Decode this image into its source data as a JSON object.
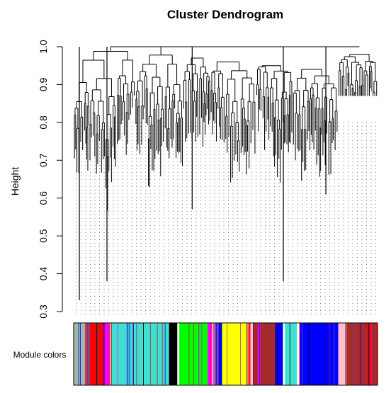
{
  "chart_data": {
    "type": "dendrogram",
    "title": "Cluster Dendrogram",
    "xlabel": "",
    "ylabel": "Height",
    "ylim": [
      0.3,
      1.0
    ],
    "yticks": [
      "0.3",
      "0.4",
      "0.5",
      "0.6",
      "0.7",
      "0.8",
      "0.9",
      "1.0"
    ],
    "ytick_values": [
      0.3,
      0.4,
      0.5,
      0.6,
      0.7,
      0.8,
      0.9,
      1.0
    ],
    "clusters": [
      {
        "color": "#000000",
        "merge_height": 1.0,
        "min_leaf_height": 0.33
      },
      {
        "color": "#000000",
        "merge_height": 0.97,
        "min_leaf_height": 0.66
      },
      {
        "color": "#000000",
        "merge_height": 0.96,
        "min_leaf_height": 0.57
      },
      {
        "color": "#000000",
        "merge_height": 0.95,
        "min_leaf_height": 0.38
      },
      {
        "color": "#000000",
        "merge_height": 0.94,
        "min_leaf_height": 0.61
      },
      {
        "color": "#000000",
        "merge_height": 0.98,
        "min_leaf_height": 0.87
      }
    ],
    "color_bar": {
      "label": "Module colors",
      "segments": [
        {
          "color": "#9fb8a8",
          "fraction": 0.035
        },
        {
          "color": "#7a4ba0",
          "fraction": 0.012
        },
        {
          "color": "#ff0000",
          "fraction": 0.018
        },
        {
          "color": "#a52a2a",
          "fraction": 0.008
        },
        {
          "color": "#ff0000",
          "fraction": 0.012
        },
        {
          "color": "#800080",
          "fraction": 0.006
        },
        {
          "color": "#ff00ff",
          "fraction": 0.014
        },
        {
          "color": "#bbbbbb",
          "fraction": 0.006
        },
        {
          "color": "#40e0d0",
          "fraction": 0.168
        },
        {
          "color": "#000000",
          "fraction": 0.024
        },
        {
          "color": "#ffffff",
          "fraction": 0.006
        },
        {
          "color": "#00ff00",
          "fraction": 0.083
        },
        {
          "color": "#ff00ff",
          "fraction": 0.012
        },
        {
          "color": "#ffc0cb",
          "fraction": 0.008
        },
        {
          "color": "#7a4ba0",
          "fraction": 0.012
        },
        {
          "color": "#0000ff",
          "fraction": 0.01
        },
        {
          "color": "#ffff00",
          "fraction": 0.077
        },
        {
          "color": "#ff0000",
          "fraction": 0.006
        },
        {
          "color": "#ffc0cb",
          "fraction": 0.01
        },
        {
          "color": "#a52a2a",
          "fraction": 0.012
        },
        {
          "color": "#ff00ff",
          "fraction": 0.006
        },
        {
          "color": "#a52a2a",
          "fraction": 0.045
        },
        {
          "color": "#0000ff",
          "fraction": 0.022
        },
        {
          "color": "#ffffff",
          "fraction": 0.006
        },
        {
          "color": "#40e0d0",
          "fraction": 0.035
        },
        {
          "color": "#ffffff",
          "fraction": 0.008
        },
        {
          "color": "#0000ff",
          "fraction": 0.113
        },
        {
          "color": "#ffc0cb",
          "fraction": 0.024
        },
        {
          "color": "#a52a2a",
          "fraction": 0.065
        },
        {
          "color": "#ff0000",
          "fraction": 0.008
        },
        {
          "color": "#a52a2a",
          "fraction": 0.018
        }
      ]
    }
  }
}
